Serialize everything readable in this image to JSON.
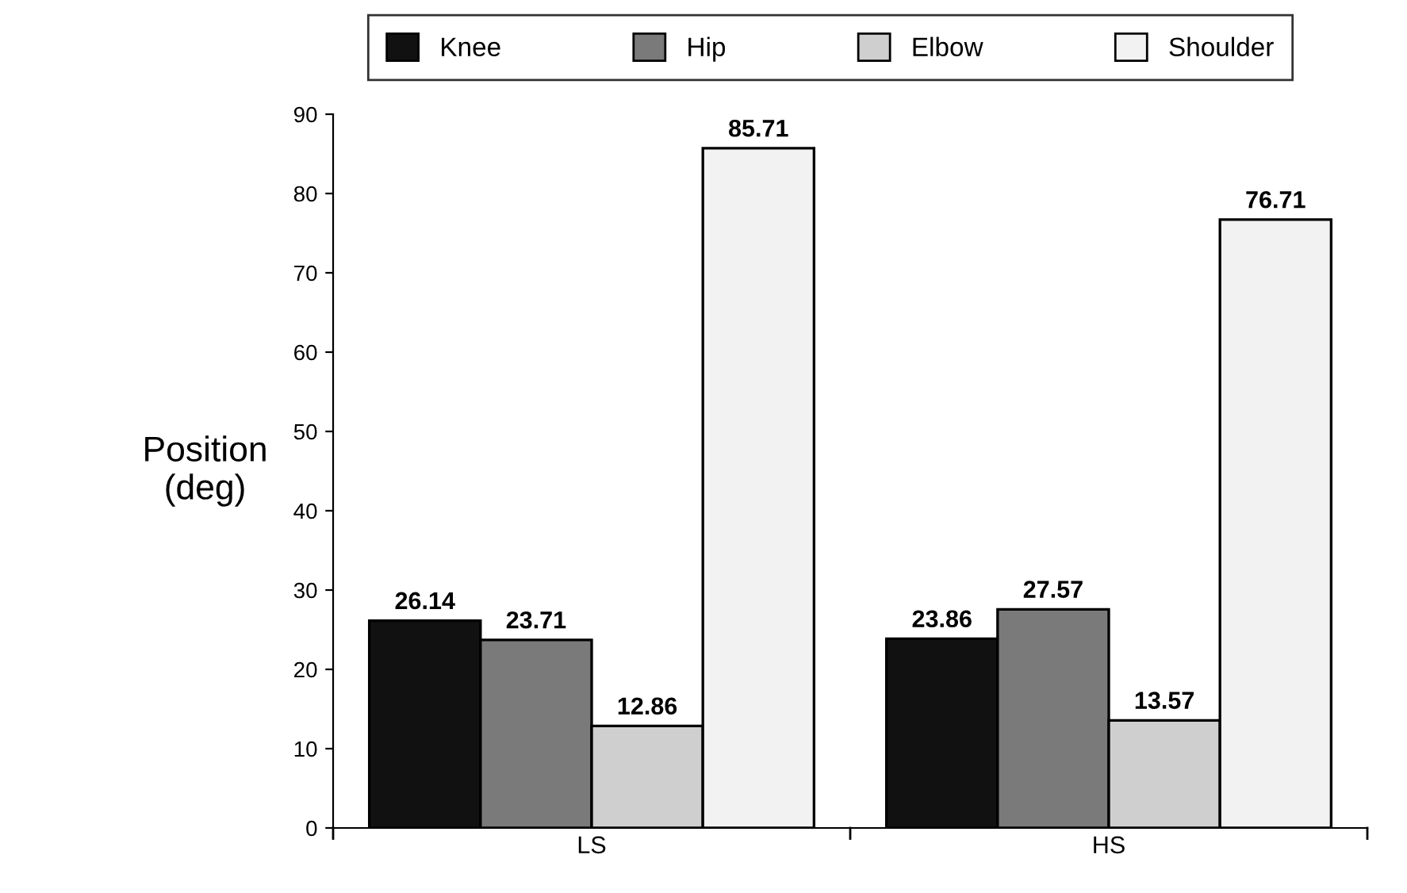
{
  "chart_data": {
    "type": "bar",
    "ylabel": "Position\n(deg)",
    "categories": [
      "LS",
      "HS"
    ],
    "series": [
      {
        "name": "Knee",
        "color": "#111111",
        "values": [
          26.14,
          23.86
        ]
      },
      {
        "name": "Hip",
        "color": "#7a7a7a",
        "values": [
          23.71,
          27.57
        ]
      },
      {
        "name": "Elbow",
        "color": "#cfcfcf",
        "values": [
          12.86,
          13.57
        ]
      },
      {
        "name": "Shoulder",
        "color": "#f2f2f2",
        "values": [
          85.71,
          76.71
        ]
      }
    ],
    "ylim": [
      0,
      90
    ],
    "yticks": [
      0,
      10,
      20,
      30,
      40,
      50,
      60,
      70,
      80,
      90
    ],
    "grid": false,
    "legend": "top",
    "data_labels": true
  }
}
